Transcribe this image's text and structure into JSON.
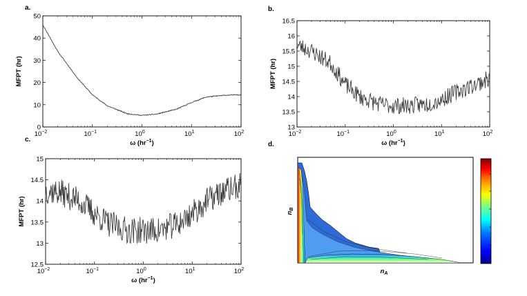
{
  "colors": {
    "line": "#3d3d3d",
    "axis": "#000000",
    "contour_fill_main": "#2f6bd6",
    "contour_fill_light": "#4f9cf0",
    "colorbar": [
      "#00007f",
      "#0000ff",
      "#007fff",
      "#00ffff",
      "#7fff7f",
      "#ffff00",
      "#ff7f00",
      "#ff0000",
      "#7f0000"
    ]
  },
  "chart_data": [
    {
      "id": "a",
      "panel_label": "a.",
      "type": "line",
      "xscale": "log",
      "xlim": [
        0.01,
        100
      ],
      "ylim": [
        0,
        50
      ],
      "xticks": [
        "10^-2",
        "10^-1",
        "10^0",
        "10^1",
        "10^2"
      ],
      "yticks": [
        0,
        10,
        20,
        30,
        40,
        50
      ],
      "xlabel": "ω (hr−1)",
      "ylabel": "MFPT (hr)",
      "noise": 0.35,
      "series": [
        {
          "name": "MFPT",
          "x": [
            0.01,
            0.02,
            0.05,
            0.1,
            0.2,
            0.5,
            1,
            2,
            5,
            10,
            20,
            50,
            100
          ],
          "y": [
            46,
            34,
            22,
            14.5,
            9.5,
            6,
            5.2,
            5.8,
            8,
            11,
            13.5,
            14.3,
            14.5
          ]
        }
      ]
    },
    {
      "id": "b",
      "panel_label": "b.",
      "type": "line",
      "xscale": "log",
      "xlim": [
        0.01,
        100
      ],
      "ylim": [
        13,
        16.5
      ],
      "xticks": [
        "10^-2",
        "10^-1",
        "10^0",
        "10^1",
        "10^2"
      ],
      "yticks": [
        13,
        13.5,
        14,
        14.5,
        15,
        15.5,
        16,
        16.5
      ],
      "xlabel": "ω (hr−1)",
      "ylabel": "MFPT (hr)",
      "noise": 0.28,
      "series": [
        {
          "name": "MFPT",
          "x": [
            0.01,
            0.02,
            0.05,
            0.1,
            0.2,
            0.5,
            1,
            2,
            5,
            10,
            20,
            50,
            100
          ],
          "y": [
            15.7,
            15.5,
            15.1,
            14.4,
            14.0,
            13.75,
            13.7,
            13.7,
            13.75,
            13.9,
            14.15,
            14.4,
            14.6
          ]
        }
      ]
    },
    {
      "id": "c",
      "panel_label": "c.",
      "type": "line",
      "xscale": "log",
      "xlim": [
        0.01,
        100
      ],
      "ylim": [
        12.5,
        15
      ],
      "xticks": [
        "10^-2",
        "10^-1",
        "10^0",
        "10^1",
        "10^2"
      ],
      "yticks": [
        12.5,
        13,
        13.5,
        14,
        14.5,
        15
      ],
      "xlabel": "ω (hr−1)",
      "ylabel": "MFPT (hr)",
      "noise": 0.32,
      "series": [
        {
          "name": "MFPT",
          "x": [
            0.01,
            0.02,
            0.05,
            0.1,
            0.2,
            0.5,
            1,
            2,
            5,
            10,
            20,
            50,
            100
          ],
          "y": [
            14.25,
            14.2,
            14.0,
            13.7,
            13.45,
            13.3,
            13.3,
            13.3,
            13.45,
            13.7,
            14.0,
            14.25,
            14.35
          ]
        }
      ]
    },
    {
      "id": "d",
      "panel_label": "d.",
      "type": "heatmap",
      "xlabel": "nA",
      "ylabel": "nB",
      "colorbar": true
    }
  ]
}
